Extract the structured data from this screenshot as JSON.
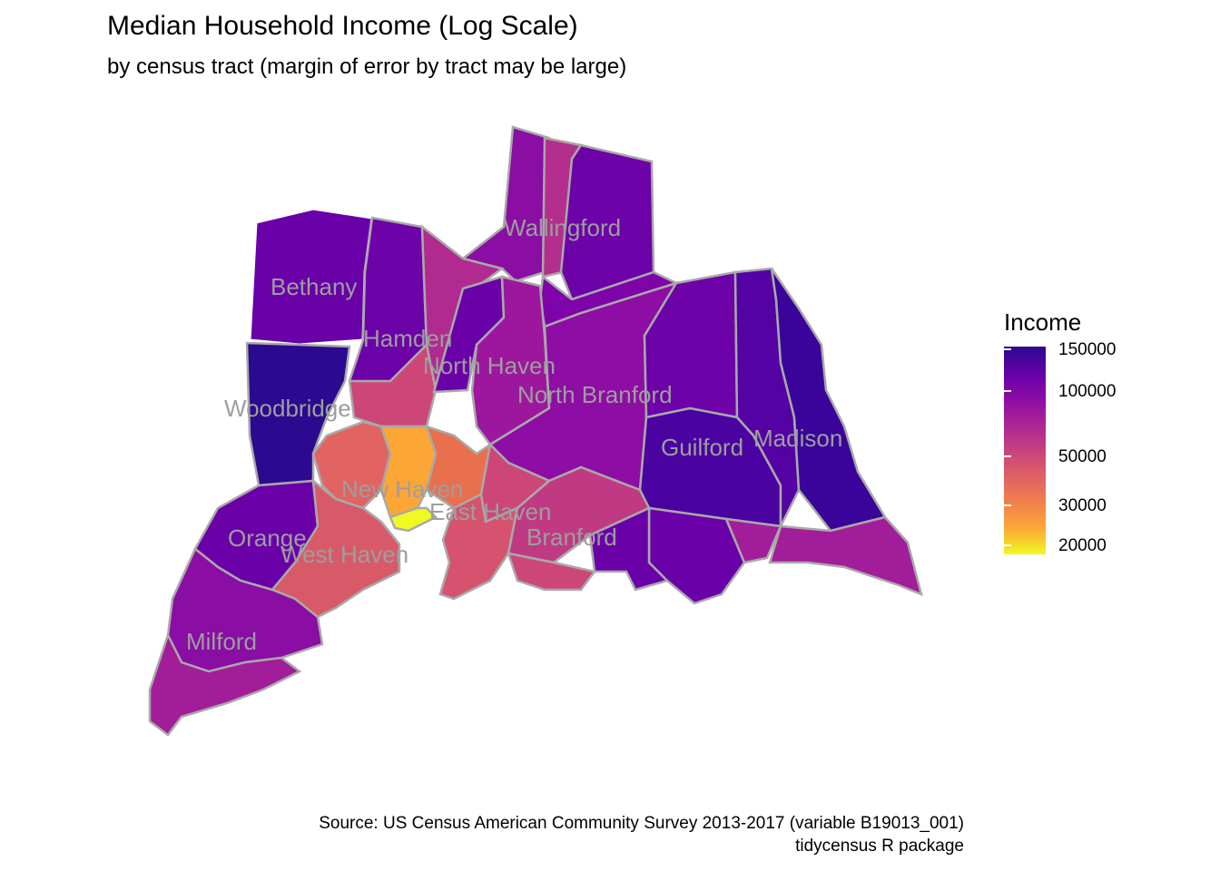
{
  "title": "Median Household Income (Log Scale)",
  "subtitle": "by census tract (margin of error by tract may be large)",
  "legend": {
    "title": "Income",
    "ticks": [
      "150000",
      "100000",
      "50000",
      "30000",
      "20000"
    ],
    "scale": "log",
    "palette": "plasma"
  },
  "town_labels": [
    "Wallingford",
    "Bethany",
    "Hamden",
    "North Haven",
    "North Branford",
    "Woodbridge",
    "Guilford",
    "Madison",
    "New Haven",
    "East Haven",
    "Orange",
    "Branford",
    "West Haven",
    "Milford"
  ],
  "caption": {
    "line1": "Source: US Census American Community Survey 2013-2017 (variable B19013_001)",
    "line2": "tidycensus R package"
  },
  "colors": {
    "high": "#2b0a8f",
    "mid_high": "#6a00a8",
    "mid": "#b12a90",
    "mid_low": "#e16462",
    "low": "#f0f921",
    "town_border": "#ffffff",
    "tract_border": "#a9a9a9",
    "label": "#9e9e9e"
  }
}
